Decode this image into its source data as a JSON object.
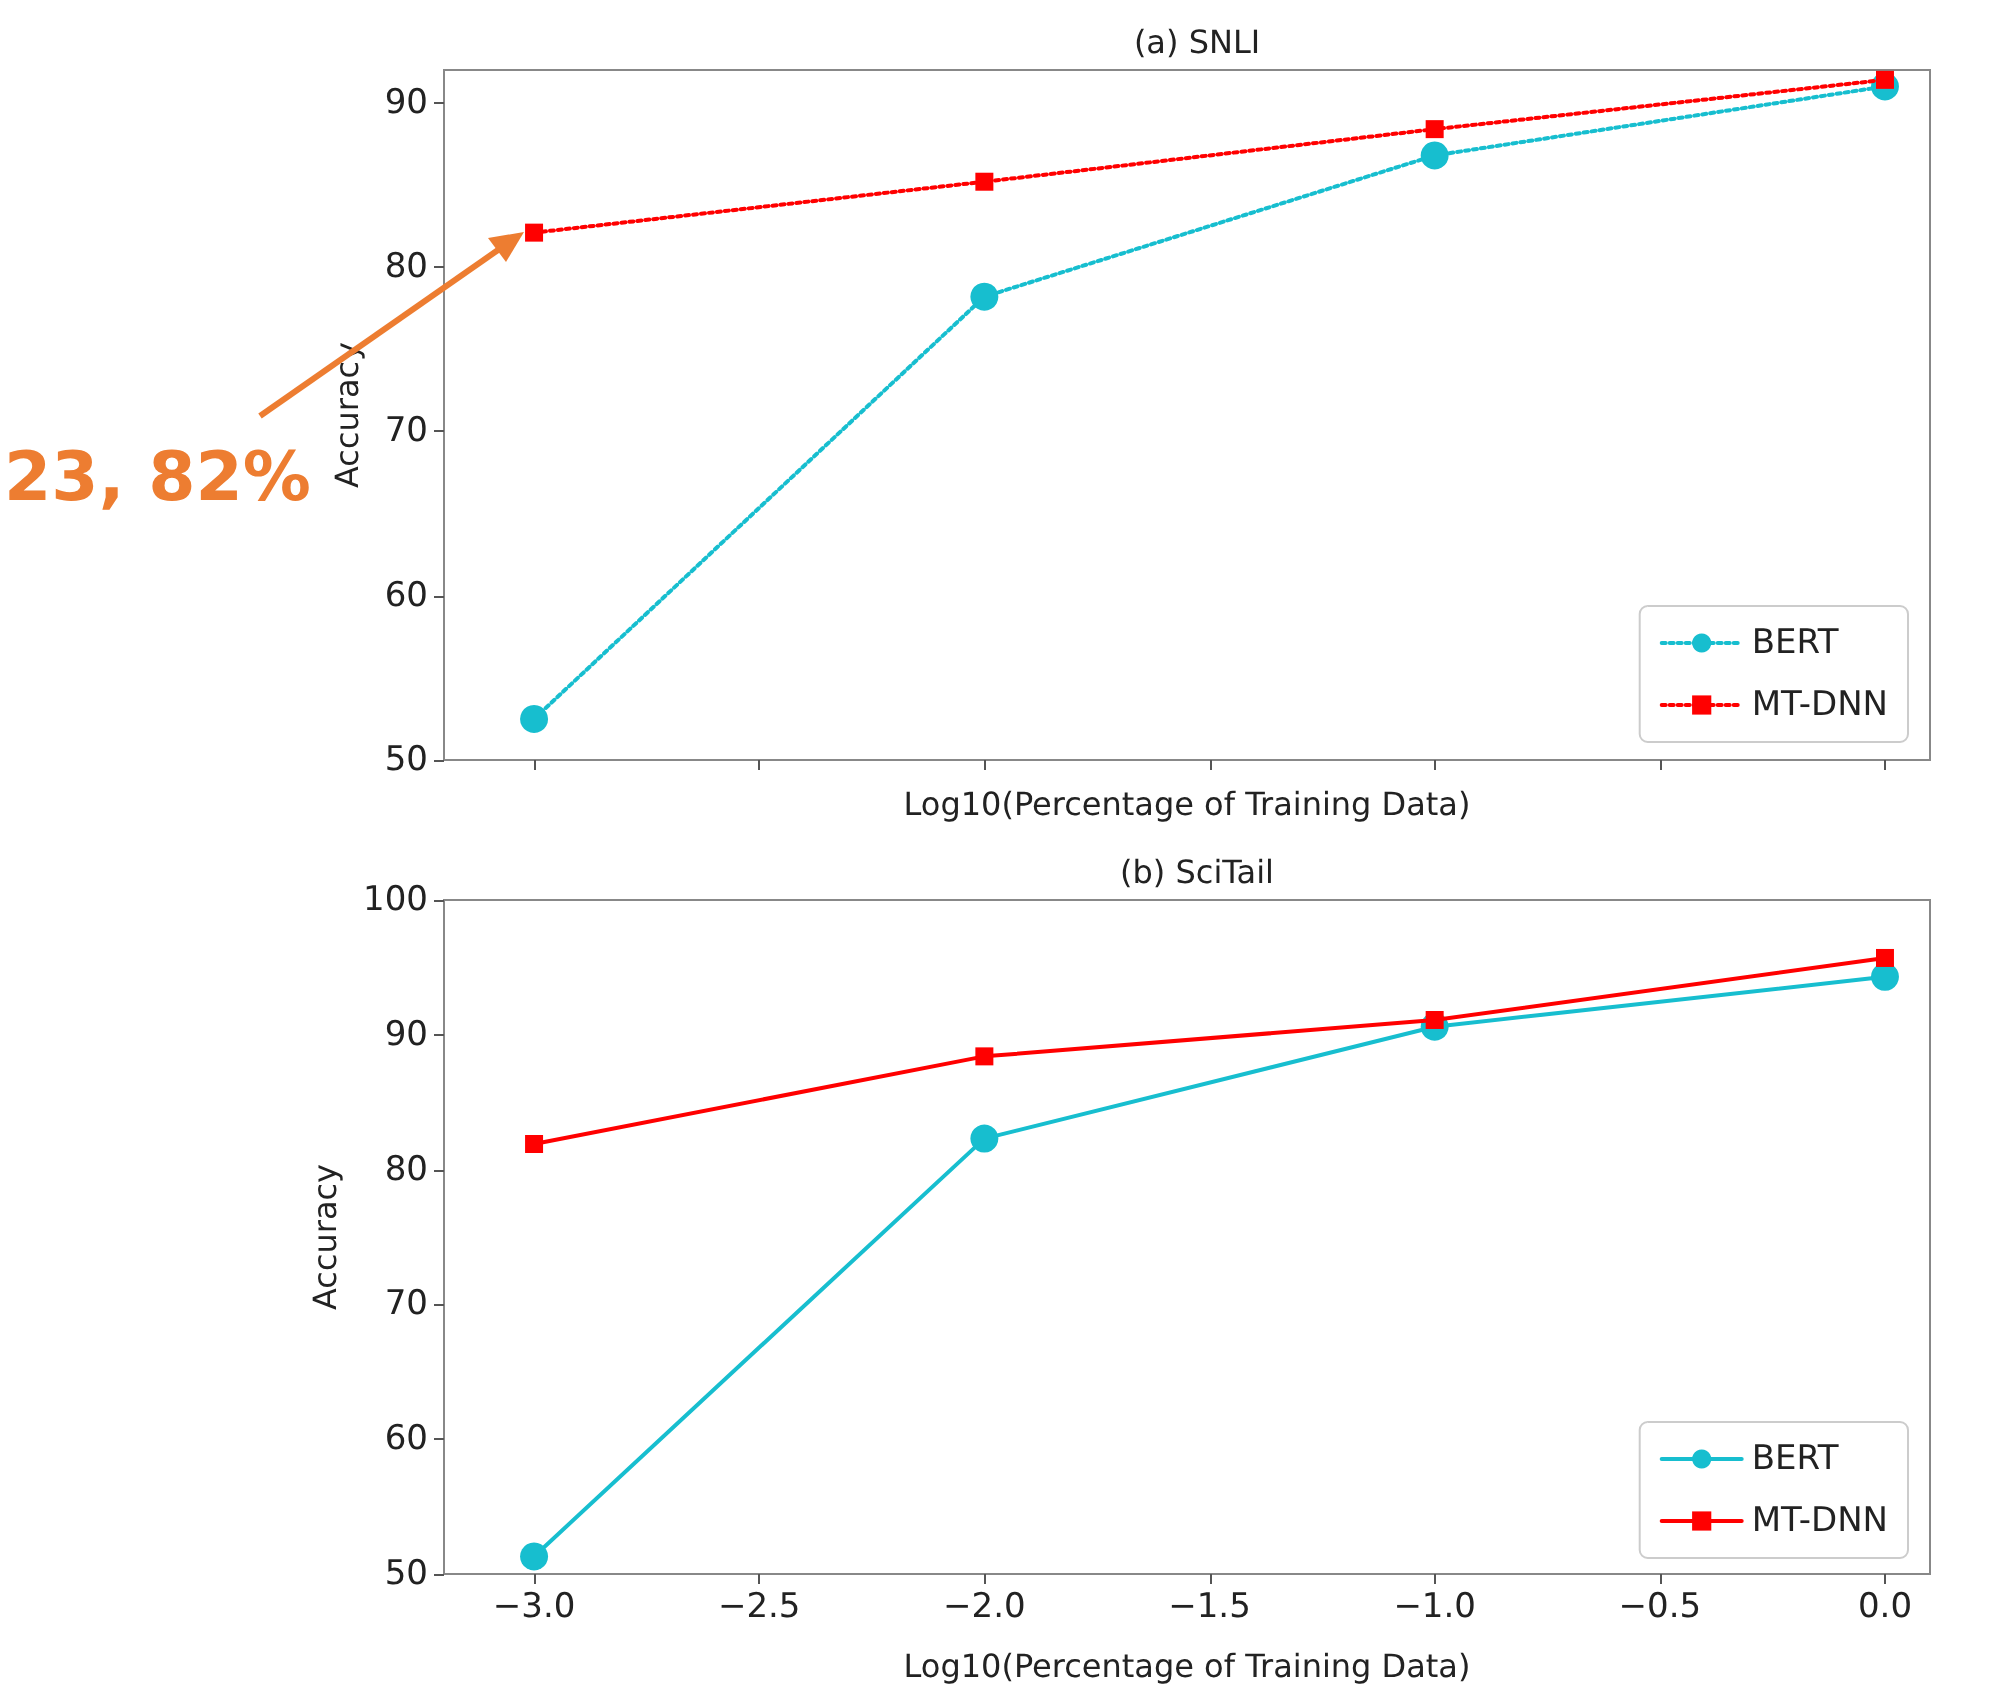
{
  "chart_data": [
    {
      "type": "line",
      "title": "(a) SNLI",
      "xlabel": "Log10(Percentage of Training Data)",
      "ylabel": "Accuracy",
      "x": [
        -3,
        -2,
        -1,
        0
      ],
      "series": [
        {
          "name": "BERT",
          "color": "#17becf",
          "marker": "circle",
          "values": [
            52.5,
            78.2,
            86.8,
            91.0
          ]
        },
        {
          "name": "MT-DNN",
          "color": "#ff0000",
          "marker": "square",
          "values": [
            82.1,
            85.2,
            88.4,
            91.4
          ]
        }
      ],
      "xlim": [
        -3.2,
        0.1
      ],
      "xticks": [
        {
          "value": -3,
          "label": null
        },
        {
          "value": -2.5,
          "label": null
        },
        {
          "value": -2,
          "label": null
        },
        {
          "value": -1.5,
          "label": null
        },
        {
          "value": -1,
          "label": null
        },
        {
          "value": -0.5,
          "label": null
        },
        {
          "value": 0,
          "label": null
        }
      ],
      "ylim": [
        50,
        92
      ],
      "yticks": [
        50,
        60,
        70,
        80,
        90
      ],
      "tick_labels": "y",
      "line_style": "dotted",
      "legend": "bottom right",
      "grid": false,
      "annotations": [
        "23, 82%"
      ]
    },
    {
      "type": "line",
      "title": "(b) SciTail",
      "xlabel": "Log10(Percentage of Training Data)",
      "ylabel": "Accuracy",
      "x": [
        -3,
        -2,
        -1,
        0
      ],
      "series": [
        {
          "name": "BERT",
          "color": "#17becf",
          "marker": "circle",
          "values": [
            51.3,
            82.3,
            90.6,
            94.3
          ]
        },
        {
          "name": "MT-DNN",
          "color": "#ff0000",
          "marker": "square",
          "values": [
            81.9,
            88.4,
            91.1,
            95.7
          ]
        }
      ],
      "xlim": [
        -3.2,
        0.1
      ],
      "xticks": [
        {
          "value": -3,
          "label": "−3.0"
        },
        {
          "value": -2.5,
          "label": "−2.5"
        },
        {
          "value": -2,
          "label": "−2.0"
        },
        {
          "value": -1.5,
          "label": "−1.5"
        },
        {
          "value": -1,
          "label": "−1.0"
        },
        {
          "value": -0.5,
          "label": "−0.5"
        },
        {
          "value": 0,
          "label": "0.0"
        }
      ],
      "ylim": [
        50,
        100
      ],
      "yticks": [
        50,
        60,
        70,
        80,
        90,
        100
      ],
      "line_style": "solid",
      "legend": "bottom right",
      "grid": false
    }
  ]
}
